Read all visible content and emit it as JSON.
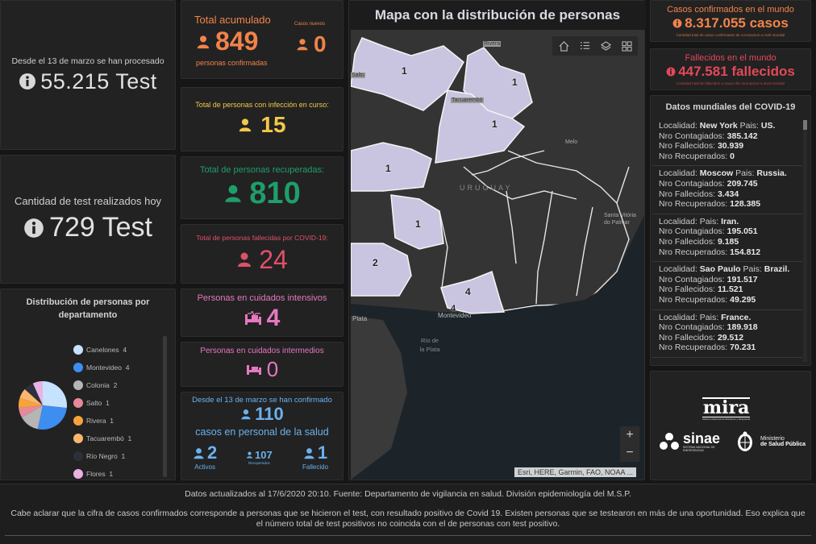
{
  "colors": {
    "orange": "#f0834a",
    "yellow": "#f3c84a",
    "green": "#1f9e6a",
    "red": "#e0506a",
    "pink": "#e678c0",
    "blue": "#6ab2ee",
    "world_orange": "#f3844a",
    "world_red": "#e3485a"
  },
  "tests_total": {
    "label": "Desde el 13 de marzo se han procesado",
    "value": "55.215 Test",
    "icon": "info-icon"
  },
  "tests_today": {
    "label": "Cantidad de test realizados hoy",
    "value": "729 Test",
    "icon": "info-icon"
  },
  "total_cases": {
    "label": "Total acumulado",
    "value": "849",
    "sublabel": "personas confirmadas",
    "new_label": "Casos nuevos",
    "new_value": "0"
  },
  "active": {
    "label": "Total de personas con infección en curso:",
    "value": "15"
  },
  "recovered": {
    "label": "Total de personas recuperadas:",
    "value": "810"
  },
  "deceased": {
    "label": "Total de personas fallecidas por COVID-19:",
    "value": "24"
  },
  "icu": {
    "label": "Personas en cuidados intensivos",
    "value": "4"
  },
  "intermediate": {
    "label": "Personas en cuidados intermedios",
    "value": "0"
  },
  "health_staff": {
    "label_top": "Desde el 13 de marzo se han confirmado",
    "value": "110",
    "label_bottom": "casos en personal de la salud",
    "active_value": "2",
    "active_label": "Activos",
    "recovered_value": "107",
    "recovered_label": "Recuperados",
    "deceased_value": "1",
    "deceased_label": "Fallecido"
  },
  "chart_data": {
    "type": "pie",
    "title": "Distribución de personas por departamento",
    "categories": [
      "Canelones",
      "Montevideo",
      "Colonia",
      "Salto",
      "Rivera",
      "Tacuarembó",
      "Río Negro",
      "Flores"
    ],
    "values": [
      4,
      4,
      2,
      1,
      1,
      1,
      1,
      1
    ],
    "colors": [
      "#c6e2ff",
      "#3d8ef0",
      "#b5b5b5",
      "#e7899b",
      "#f7a23b",
      "#fbb66e",
      "#2a313a",
      "#eab1e3"
    ],
    "legend": "right"
  },
  "map": {
    "title": "Mapa con la distribución de personas",
    "tools": [
      "home-icon",
      "legend-icon",
      "layers-icon",
      "basemap-icon"
    ],
    "zoom_in": "+",
    "zoom_out": "−",
    "attribution": "Esri, HERE, Garmin, FAO, NOAA ...",
    "labels": {
      "country": "URUGUAY",
      "melo": "Melo",
      "santa_vitoria": "Santa Vitória do Palmar",
      "montevideo": "Montevideo",
      "plata": "Plata",
      "rio_de_la_plata": "Río de la Plata",
      "rivera": "Rivera",
      "tacuarembo": "Tacuarembó",
      "salto": "Salto"
    },
    "counts": {
      "artigas_salto": "1",
      "rivera": "1",
      "tacuarembo": "1",
      "rio_negro": "1",
      "flores": "1",
      "colonia": "2",
      "canelones": "4",
      "montevideo": "4"
    }
  },
  "world_cases": {
    "title": "Casos confirmados en el mundo",
    "value": "8.317.055 casos",
    "note": "Cantidad total de casos confirmados de coronavirus a nivel mundial"
  },
  "world_deaths": {
    "title": "Fallecidos en el mundo",
    "value": "447.581 fallecidos",
    "note": "Cantidad total de fallecidos a causa del coronavirus a nivel mundial"
  },
  "world_data": {
    "title": "Datos mundiales del COVID-19",
    "labels": {
      "locality": "Localidad:",
      "country": "Pais:",
      "infected": "Nro Contagiados:",
      "deaths": "Nro Fallecidos:",
      "recovered": "Nro Recuperados:"
    },
    "items": [
      {
        "locality": "New York",
        "country": "US.",
        "infected": "385.142",
        "deaths": "30.939",
        "recovered": "0"
      },
      {
        "locality": "Moscow",
        "country": "Russia.",
        "infected": "209.745",
        "deaths": "3.434",
        "recovered": "128.385"
      },
      {
        "locality": "",
        "country": "Iran.",
        "infected": "195.051",
        "deaths": "9.185",
        "recovered": "154.812"
      },
      {
        "locality": "Sao Paulo",
        "country": "Brazil.",
        "infected": "191.517",
        "deaths": "11.521",
        "recovered": "49.295"
      },
      {
        "locality": "",
        "country": "France.",
        "infected": "189.918",
        "deaths": "29.512",
        "recovered": "70.231"
      }
    ]
  },
  "logos": {
    "mira": "mira",
    "mira_sub": "Sistema Nacional de Monitoreo y Respuesta",
    "sinae": "sinae",
    "sinae_sub": "SISTEMA NACIONAL DE EMERGENCIAS",
    "msp_line1": "Ministerio",
    "msp_line2": "de Salud Pública"
  },
  "footer": {
    "line1": "Datos actualizados al 17/6/2020 20:10. Fuente: Departamento de vigilancia en salud. División epidemiología del M.S.P.",
    "line2": "Cabe aclarar que la cifra de casos confirmados corresponde a personas que se hicieron el test, con resultado positivo de Covid 19. Existen personas que se testearon en más de una oportunidad. Eso explica que el número total de test positivos no coincida con el de personas con test positivo."
  }
}
